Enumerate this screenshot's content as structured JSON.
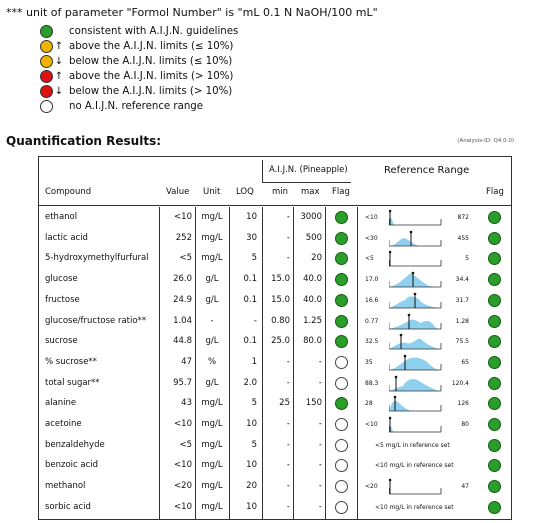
{
  "note": "*** unit of parameter \"Formol Number\" is \"mL 0.1 N NaOH/100 mL\"",
  "legend": [
    {
      "icon": "green-circle-icon",
      "color": "#2a9d2a",
      "arrow": "",
      "text": "consistent with A.I.J.N. guidelines"
    },
    {
      "icon": "yellow-circle-up-icon",
      "color": "#f0b400",
      "arrow": "↑",
      "text": "above the A.I.J.N. limits (≤ 10%)"
    },
    {
      "icon": "yellow-circle-down-icon",
      "color": "#f0b400",
      "arrow": "↓",
      "text": "below the A.I.J.N. limits (≤ 10%)"
    },
    {
      "icon": "red-circle-up-icon",
      "color": "#dd1111",
      "arrow": "↑",
      "text": "above the A.I.J.N. limits (> 10%)"
    },
    {
      "icon": "red-circle-down-icon",
      "color": "#dd1111",
      "arrow": "↓",
      "text": "below the A.I.J.N. limits (> 10%)"
    },
    {
      "icon": "white-circle-icon",
      "color": "#ffffff",
      "arrow": "",
      "text": "no A.I.J.N. reference range"
    }
  ],
  "section_title": "Quantification Results:",
  "analysis_id": "(Analysis-ID: Q4.0.0)",
  "header": {
    "aijn_group": "A.I.J.N. (Pineapple)",
    "reference_range": "Reference Range",
    "compound": "Compound",
    "value": "Value",
    "unit": "Unit",
    "loq": "LOQ",
    "min": "min",
    "max": "max",
    "flag": "Flag",
    "flag2": "Flag"
  },
  "rows": [
    {
      "compound": "ethanol",
      "value": "<10",
      "unit": "mg/L",
      "loq": "10",
      "min": "-",
      "max": "3000",
      "flag": "green",
      "ref_left": "<10",
      "ref_right": "872",
      "ref_note": "",
      "ref_flag": "green"
    },
    {
      "compound": "lactic acid",
      "value": "252",
      "unit": "mg/L",
      "loq": "30",
      "min": "-",
      "max": "500",
      "flag": "green",
      "ref_left": "<30",
      "ref_right": "455",
      "ref_note": "",
      "ref_flag": "green"
    },
    {
      "compound": "5-hydroxymethylfurfural",
      "value": "<5",
      "unit": "mg/L",
      "loq": "5",
      "min": "-",
      "max": "20",
      "flag": "green",
      "ref_left": "<5",
      "ref_right": "5",
      "ref_note": "",
      "ref_flag": "green"
    },
    {
      "compound": "glucose",
      "value": "26.0",
      "unit": "g/L",
      "loq": "0.1",
      "min": "15.0",
      "max": "40.0",
      "flag": "green",
      "ref_left": "17.0",
      "ref_right": "34.4",
      "ref_note": "",
      "ref_flag": "green"
    },
    {
      "compound": "fructose",
      "value": "24.9",
      "unit": "g/L",
      "loq": "0.1",
      "min": "15.0",
      "max": "40.0",
      "flag": "green",
      "ref_left": "16.6",
      "ref_right": "31.7",
      "ref_note": "",
      "ref_flag": "green"
    },
    {
      "compound": "glucose/fructose ratio**",
      "value": "1.04",
      "unit": "-",
      "loq": "-",
      "min": "0.80",
      "max": "1.25",
      "flag": "green",
      "ref_left": "0.77",
      "ref_right": "1.28",
      "ref_note": "",
      "ref_flag": "green"
    },
    {
      "compound": "sucrose",
      "value": "44.8",
      "unit": "g/L",
      "loq": "0.1",
      "min": "25.0",
      "max": "80.0",
      "flag": "green",
      "ref_left": "32.5",
      "ref_right": "75.5",
      "ref_note": "",
      "ref_flag": "green"
    },
    {
      "compound": "% sucrose**",
      "value": "47",
      "unit": "%",
      "loq": "1",
      "min": "-",
      "max": "-",
      "flag": "white",
      "ref_left": "35",
      "ref_right": "65",
      "ref_note": "",
      "ref_flag": "green"
    },
    {
      "compound": "total sugar**",
      "value": "95.7",
      "unit": "g/L",
      "loq": "2.0",
      "min": "-",
      "max": "-",
      "flag": "white",
      "ref_left": "88.3",
      "ref_right": "120.4",
      "ref_note": "",
      "ref_flag": "green"
    },
    {
      "compound": "alanine",
      "value": "43",
      "unit": "mg/L",
      "loq": "5",
      "min": "25",
      "max": "150",
      "flag": "green",
      "ref_left": "28",
      "ref_right": "126",
      "ref_note": "",
      "ref_flag": "green"
    },
    {
      "compound": "acetoine",
      "value": "<10",
      "unit": "mg/L",
      "loq": "10",
      "min": "-",
      "max": "-",
      "flag": "white",
      "ref_left": "<10",
      "ref_right": "80",
      "ref_note": "",
      "ref_flag": "green"
    },
    {
      "compound": "benzaldehyde",
      "value": "<5",
      "unit": "mg/L",
      "loq": "5",
      "min": "-",
      "max": "-",
      "flag": "white",
      "ref_left": "",
      "ref_right": "",
      "ref_note": "<5 mg/L in reference set",
      "ref_flag": "green"
    },
    {
      "compound": "benzoic acid",
      "value": "<10",
      "unit": "mg/L",
      "loq": "10",
      "min": "-",
      "max": "-",
      "flag": "white",
      "ref_left": "",
      "ref_right": "",
      "ref_note": "<10 mg/L in reference set",
      "ref_flag": "green"
    },
    {
      "compound": "methanol",
      "value": "<20",
      "unit": "mg/L",
      "loq": "20",
      "min": "-",
      "max": "-",
      "flag": "white",
      "ref_left": "<20",
      "ref_right": "47",
      "ref_note": "",
      "ref_flag": "green"
    },
    {
      "compound": "sorbic acid",
      "value": "<10",
      "unit": "mg/L",
      "loq": "10",
      "min": "-",
      "max": "-",
      "flag": "white",
      "ref_left": "",
      "ref_right": "",
      "ref_note": "<10 mg/L in reference set",
      "ref_flag": "green"
    }
  ],
  "colors": {
    "green": "#2a9d2a",
    "distribution": "#8fd0ee"
  }
}
